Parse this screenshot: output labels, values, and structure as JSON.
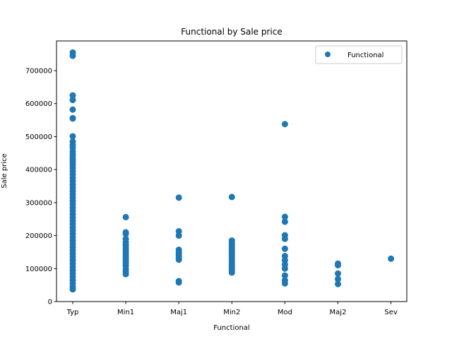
{
  "chart_data": {
    "type": "scatter",
    "title": "Functional by Sale price",
    "xlabel": "Functional",
    "ylabel": "Sale price",
    "categories": [
      "Typ",
      "Min1",
      "Maj1",
      "Min2",
      "Mod",
      "Maj2",
      "Sev"
    ],
    "ylim": [
      0,
      790000
    ],
    "yticks": [
      0,
      100000,
      200000,
      300000,
      400000,
      500000,
      600000,
      700000
    ],
    "legend": {
      "position": "top-right"
    },
    "grid": false,
    "series": [
      {
        "name": "Functional",
        "color": "#1f77b4",
        "points": [
          {
            "x": "Typ",
            "y": 755000
          },
          {
            "x": "Typ",
            "y": 745000
          },
          {
            "x": "Typ",
            "y": 625000
          },
          {
            "x": "Typ",
            "y": 611000
          },
          {
            "x": "Typ",
            "y": 582000
          },
          {
            "x": "Typ",
            "y": 556000
          },
          {
            "x": "Typ",
            "y": 555000
          },
          {
            "x": "Typ",
            "y": 501000
          },
          {
            "x": "Typ",
            "y": 485000
          },
          {
            "x": "Typ",
            "y": 475000
          },
          {
            "x": "Typ",
            "y": 466000
          },
          {
            "x": "Typ",
            "y": 455000
          },
          {
            "x": "Typ",
            "y": 446000
          },
          {
            "x": "Typ",
            "y": 438000
          },
          {
            "x": "Typ",
            "y": 430000
          },
          {
            "x": "Typ",
            "y": 423000
          },
          {
            "x": "Typ",
            "y": 415000
          },
          {
            "x": "Typ",
            "y": 405000
          },
          {
            "x": "Typ",
            "y": 395000
          },
          {
            "x": "Typ",
            "y": 385000
          },
          {
            "x": "Typ",
            "y": 375000
          },
          {
            "x": "Typ",
            "y": 365000
          },
          {
            "x": "Typ",
            "y": 355000
          },
          {
            "x": "Typ",
            "y": 345000
          },
          {
            "x": "Typ",
            "y": 335000
          },
          {
            "x": "Typ",
            "y": 325000
          },
          {
            "x": "Typ",
            "y": 315000
          },
          {
            "x": "Typ",
            "y": 305000
          },
          {
            "x": "Typ",
            "y": 295000
          },
          {
            "x": "Typ",
            "y": 285000
          },
          {
            "x": "Typ",
            "y": 275000
          },
          {
            "x": "Typ",
            "y": 265000
          },
          {
            "x": "Typ",
            "y": 255000
          },
          {
            "x": "Typ",
            "y": 245000
          },
          {
            "x": "Typ",
            "y": 235000
          },
          {
            "x": "Typ",
            "y": 225000
          },
          {
            "x": "Typ",
            "y": 215000
          },
          {
            "x": "Typ",
            "y": 205000
          },
          {
            "x": "Typ",
            "y": 195000
          },
          {
            "x": "Typ",
            "y": 185000
          },
          {
            "x": "Typ",
            "y": 175000
          },
          {
            "x": "Typ",
            "y": 165000
          },
          {
            "x": "Typ",
            "y": 155000
          },
          {
            "x": "Typ",
            "y": 145000
          },
          {
            "x": "Typ",
            "y": 135000
          },
          {
            "x": "Typ",
            "y": 125000
          },
          {
            "x": "Typ",
            "y": 115000
          },
          {
            "x": "Typ",
            "y": 105000
          },
          {
            "x": "Typ",
            "y": 95000
          },
          {
            "x": "Typ",
            "y": 85000
          },
          {
            "x": "Typ",
            "y": 75000
          },
          {
            "x": "Typ",
            "y": 65000
          },
          {
            "x": "Typ",
            "y": 55000
          },
          {
            "x": "Typ",
            "y": 45000
          },
          {
            "x": "Typ",
            "y": 37000
          },
          {
            "x": "Min1",
            "y": 256000
          },
          {
            "x": "Min1",
            "y": 210000
          },
          {
            "x": "Min1",
            "y": 205000
          },
          {
            "x": "Min1",
            "y": 190000
          },
          {
            "x": "Min1",
            "y": 180000
          },
          {
            "x": "Min1",
            "y": 172000
          },
          {
            "x": "Min1",
            "y": 165000
          },
          {
            "x": "Min1",
            "y": 158000
          },
          {
            "x": "Min1",
            "y": 150000
          },
          {
            "x": "Min1",
            "y": 143000
          },
          {
            "x": "Min1",
            "y": 136000
          },
          {
            "x": "Min1",
            "y": 129000
          },
          {
            "x": "Min1",
            "y": 122000
          },
          {
            "x": "Min1",
            "y": 115000
          },
          {
            "x": "Min1",
            "y": 108000
          },
          {
            "x": "Min1",
            "y": 98000
          },
          {
            "x": "Min1",
            "y": 90000
          },
          {
            "x": "Min1",
            "y": 83000
          },
          {
            "x": "Maj1",
            "y": 315000
          },
          {
            "x": "Maj1",
            "y": 213000
          },
          {
            "x": "Maj1",
            "y": 200000
          },
          {
            "x": "Maj1",
            "y": 157000
          },
          {
            "x": "Maj1",
            "y": 150000
          },
          {
            "x": "Maj1",
            "y": 143000
          },
          {
            "x": "Maj1",
            "y": 137000
          },
          {
            "x": "Maj1",
            "y": 130000
          },
          {
            "x": "Maj1",
            "y": 127000
          },
          {
            "x": "Maj1",
            "y": 62000
          },
          {
            "x": "Maj1",
            "y": 58000
          },
          {
            "x": "Min2",
            "y": 317000
          },
          {
            "x": "Min2",
            "y": 185000
          },
          {
            "x": "Min2",
            "y": 177000
          },
          {
            "x": "Min2",
            "y": 170000
          },
          {
            "x": "Min2",
            "y": 163000
          },
          {
            "x": "Min2",
            "y": 155000
          },
          {
            "x": "Min2",
            "y": 148000
          },
          {
            "x": "Min2",
            "y": 141000
          },
          {
            "x": "Min2",
            "y": 134000
          },
          {
            "x": "Min2",
            "y": 127000
          },
          {
            "x": "Min2",
            "y": 120000
          },
          {
            "x": "Min2",
            "y": 113000
          },
          {
            "x": "Min2",
            "y": 106000
          },
          {
            "x": "Min2",
            "y": 99000
          },
          {
            "x": "Min2",
            "y": 93000
          },
          {
            "x": "Min2",
            "y": 88000
          },
          {
            "x": "Mod",
            "y": 538000
          },
          {
            "x": "Mod",
            "y": 257000
          },
          {
            "x": "Mod",
            "y": 242000
          },
          {
            "x": "Mod",
            "y": 201000
          },
          {
            "x": "Mod",
            "y": 190000
          },
          {
            "x": "Mod",
            "y": 160000
          },
          {
            "x": "Mod",
            "y": 138000
          },
          {
            "x": "Mod",
            "y": 125000
          },
          {
            "x": "Mod",
            "y": 112000
          },
          {
            "x": "Mod",
            "y": 100000
          },
          {
            "x": "Mod",
            "y": 79000
          },
          {
            "x": "Mod",
            "y": 64000
          },
          {
            "x": "Mod",
            "y": 55000
          },
          {
            "x": "Maj2",
            "y": 115000
          },
          {
            "x": "Maj2",
            "y": 110000
          },
          {
            "x": "Maj2",
            "y": 85000
          },
          {
            "x": "Maj2",
            "y": 68000
          },
          {
            "x": "Maj2",
            "y": 53000
          },
          {
            "x": "Sev",
            "y": 130000
          }
        ]
      }
    ]
  }
}
